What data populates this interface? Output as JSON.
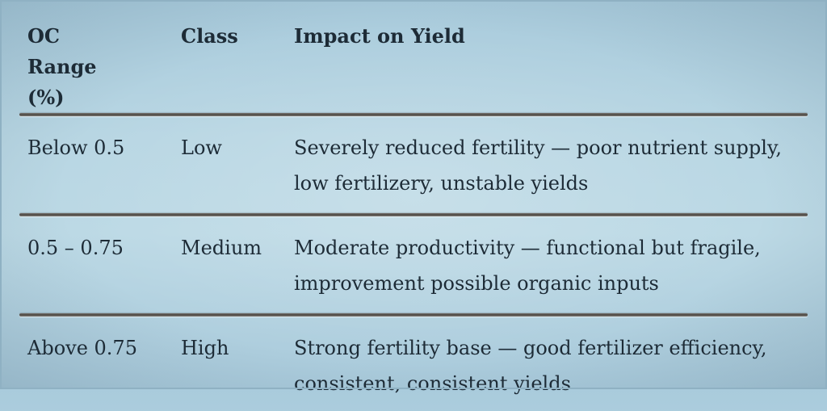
{
  "table": {
    "headers": [
      "OC Range (%)",
      "Class",
      "Impact on Yield"
    ],
    "rows": [
      {
        "range": "Below 0.5",
        "class": "Low",
        "impact_line1": "Severely reduced fertility — poor nutrient supply,",
        "impact_line2": "low fertilizery, unstable yields"
      },
      {
        "range": "0.5 – 0.75",
        "class": "Medium",
        "impact_line1": "Moderate productivity — functional but fragile,",
        "impact_line2": "improvement possible organic inputs"
      },
      {
        "range": "Above 0.75",
        "class": "High",
        "impact_line1": "Strong fertility base — good fertilizer efficiency,",
        "impact_line2": "consistent,  consistent yields"
      }
    ]
  }
}
